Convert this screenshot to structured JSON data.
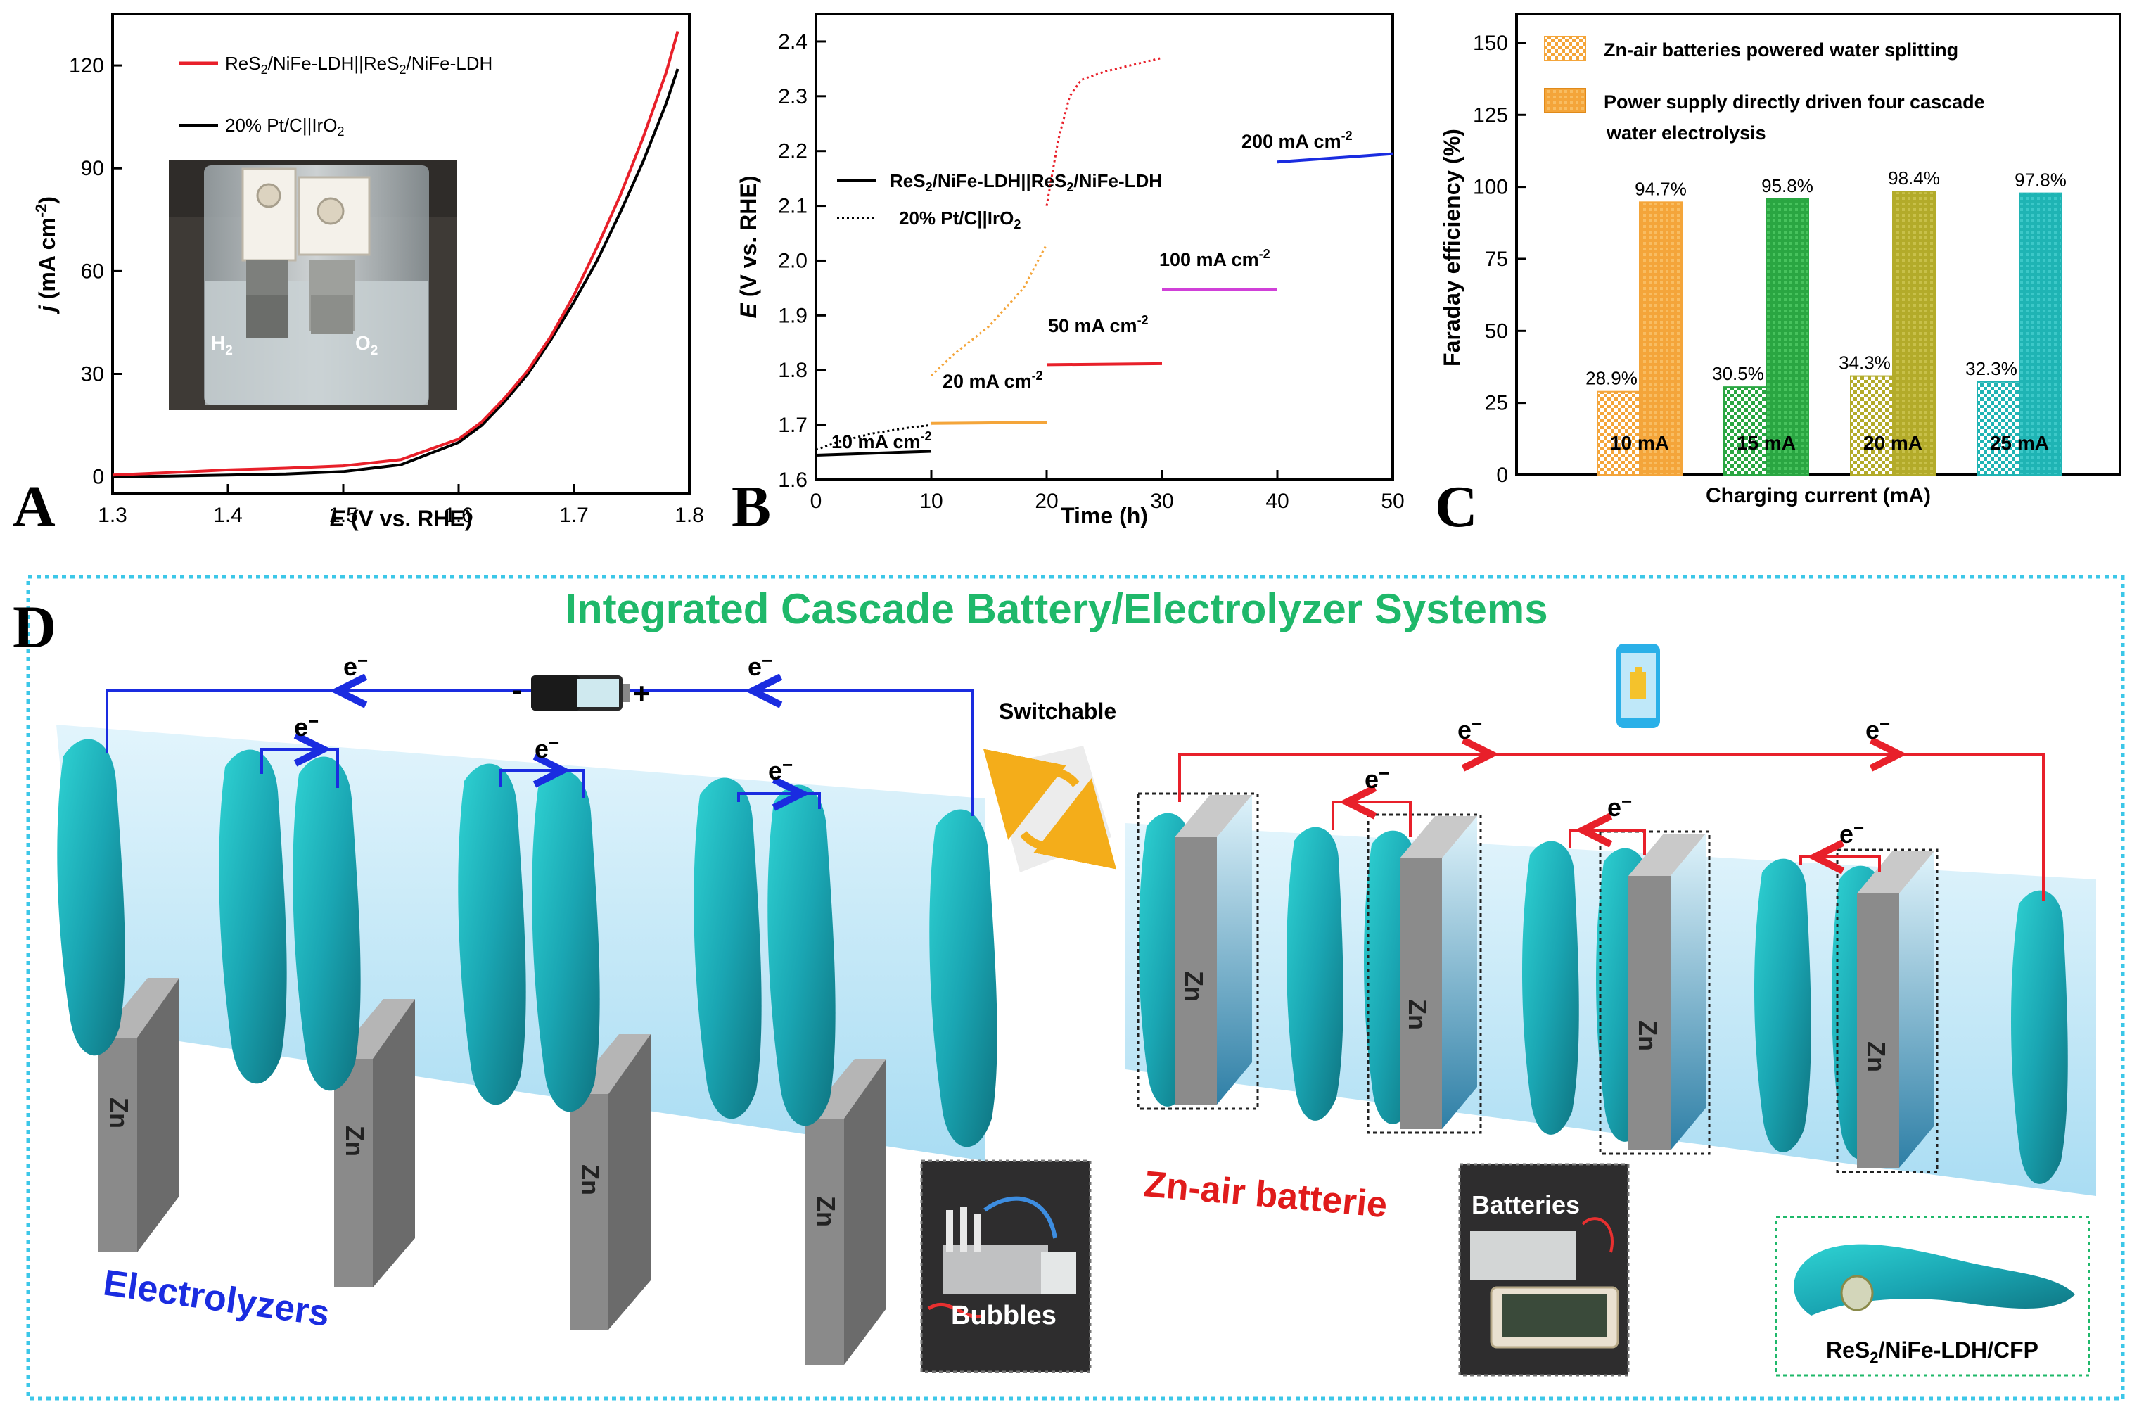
{
  "colors": {
    "red": "#e8202a",
    "blue": "#1a2ce0",
    "orange": "#f4a53a",
    "magenta": "#d040d8",
    "teal": "#1fb4b4",
    "green": "#2aa642",
    "olive": "#b3ab2a",
    "cyan_border": "#3cc7e8",
    "title_green": "#1fb86a",
    "text_red": "#e01b1b"
  },
  "panel_a": {
    "letter": "A",
    "xlabel": "E (V vs. RHE)",
    "xlabel_italic": "E",
    "xlabel_rest": " (V vs. RHE)",
    "ylabel_italic": "j",
    "ylabel_rest": " (mA cm",
    "ylabel_sup": "-2",
    "ylabel_end": ")",
    "xticks": [
      "1.3",
      "1.4",
      "1.5",
      "1.6",
      "1.7",
      "1.8"
    ],
    "yticks": [
      "0",
      "30",
      "60",
      "90",
      "120"
    ],
    "legend_red": "ReS2/NiFe-LDH||ReS2/NiFe-LDH",
    "legend_black": "20% Pt/C||IrO2",
    "photo_label_h2": "H2",
    "photo_label_o2": "O2"
  },
  "panel_b": {
    "letter": "B",
    "xlabel": "Time (h)",
    "ylabel_italic": "E",
    "ylabel_rest": " (V vs. RHE)",
    "xticks": [
      "0",
      "10",
      "20",
      "30",
      "40",
      "50"
    ],
    "yticks": [
      "1.6",
      "1.7",
      "1.8",
      "1.9",
      "2.0",
      "2.1",
      "2.2",
      "2.3",
      "2.4"
    ],
    "legend_solid": "ReS2/NiFe-LDH||ReS2/NiFe-LDH",
    "legend_dotted": "20% Pt/C||IrO2",
    "label_10": "10 mA cm-2",
    "label_20": "20 mA cm-2",
    "label_50": "50 mA cm-2",
    "label_100": "100 mA cm-2",
    "label_200": "200 mA cm-2"
  },
  "panel_c": {
    "letter": "C",
    "xlabel": "Charging current (mA)",
    "ylabel": "Faraday efficiency (%)",
    "yticks": [
      "0",
      "25",
      "50",
      "75",
      "100",
      "125",
      "150"
    ],
    "legend_1": "Zn-air batteries powered water splitting",
    "legend_2a": "Power supply directly driven four cascade",
    "legend_2b": "water electrolysis"
  },
  "chart_data": [
    {
      "type": "line",
      "title": "",
      "xlabel": "E (V vs. RHE)",
      "ylabel": "j (mA cm-2)",
      "xlim": [
        1.3,
        1.8
      ],
      "ylim": [
        -5,
        135
      ],
      "series": [
        {
          "name": "ReS2/NiFe-LDH||ReS2/NiFe-LDH",
          "x": [
            1.3,
            1.35,
            1.4,
            1.45,
            1.5,
            1.55,
            1.6,
            1.62,
            1.64,
            1.66,
            1.68,
            1.7,
            1.72,
            1.74,
            1.76,
            1.78,
            1.79
          ],
          "values": [
            0.5,
            1.2,
            2.0,
            2.5,
            3.2,
            5.0,
            11,
            16,
            23,
            31,
            41,
            53,
            67,
            82,
            99,
            118,
            130
          ]
        },
        {
          "name": "20% Pt/C||IrO2",
          "x": [
            1.3,
            1.35,
            1.4,
            1.45,
            1.5,
            1.55,
            1.6,
            1.62,
            1.64,
            1.66,
            1.68,
            1.7,
            1.72,
            1.74,
            1.76,
            1.78,
            1.79
          ],
          "values": [
            0,
            0.2,
            0.5,
            0.8,
            1.5,
            3.5,
            10,
            15,
            22,
            30,
            40,
            51,
            63,
            77,
            92,
            109,
            119
          ]
        }
      ]
    },
    {
      "type": "line",
      "title": "",
      "xlabel": "Time (h)",
      "ylabel": "E (V vs. RHE)",
      "xlim": [
        0,
        50
      ],
      "ylim": [
        1.6,
        2.45
      ],
      "series": [
        {
          "name": "ReS2/NiFe-LDH 10 mA cm-2",
          "x": [
            0,
            10
          ],
          "values": [
            1.645,
            1.652
          ]
        },
        {
          "name": "ReS2/NiFe-LDH 20 mA cm-2",
          "x": [
            10,
            20
          ],
          "values": [
            1.703,
            1.705
          ]
        },
        {
          "name": "ReS2/NiFe-LDH 50 mA cm-2",
          "x": [
            20,
            30
          ],
          "values": [
            1.81,
            1.812
          ]
        },
        {
          "name": "ReS2/NiFe-LDH 100 mA cm-2",
          "x": [
            30,
            40
          ],
          "values": [
            1.948,
            1.948
          ]
        },
        {
          "name": "ReS2/NiFe-LDH 200 mA cm-2",
          "x": [
            40,
            50
          ],
          "values": [
            2.18,
            2.195
          ]
        },
        {
          "name": "20% Pt/C||IrO2 10 mA cm-2",
          "x": [
            0,
            2,
            5,
            8,
            10
          ],
          "values": [
            1.655,
            1.67,
            1.685,
            1.695,
            1.7
          ]
        },
        {
          "name": "20% Pt/C||IrO2 20 mA cm-2",
          "x": [
            10,
            12,
            15,
            18,
            20
          ],
          "values": [
            1.79,
            1.83,
            1.88,
            1.95,
            2.03
          ]
        },
        {
          "name": "20% Pt/C||IrO2 50 mA cm-2",
          "x": [
            20,
            21,
            22,
            23,
            25,
            27,
            30
          ],
          "values": [
            2.1,
            2.22,
            2.3,
            2.33,
            2.345,
            2.355,
            2.37
          ]
        }
      ]
    },
    {
      "type": "bar",
      "title": "",
      "xlabel": "Charging current (mA)",
      "ylabel": "Faraday efficiency (%)",
      "categories": [
        "10 mA",
        "15 mA",
        "20 mA",
        "25 mA"
      ],
      "ylim": [
        0,
        160
      ],
      "series": [
        {
          "name": "Zn-air batteries powered water splitting",
          "values": [
            28.9,
            30.5,
            34.3,
            32.3
          ],
          "labels": [
            "28.9%",
            "30.5%",
            "34.3%",
            "32.3%"
          ]
        },
        {
          "name": "Power supply directly driven four cascade water electrolysis",
          "values": [
            94.7,
            95.8,
            98.4,
            97.8
          ],
          "labels": [
            "94.7%",
            "95.8%",
            "98.4%",
            "97.8%"
          ]
        }
      ],
      "bar_colors": [
        "#f4a53a",
        "#2aa642",
        "#b3ab2a",
        "#1fb4b4"
      ]
    }
  ],
  "panel_d": {
    "letter": "D",
    "title": "Integrated Cascade Battery/Electrolyzer Systems",
    "electron": "e-",
    "switchable": "Switchable",
    "electrolyzers": "Electrolyzers",
    "zn_air": "Zn-air batterie",
    "zn": "Zn",
    "bubbles": "Bubbles",
    "batteries": "Batteries",
    "cfp": "ReS2/NiFe-LDH/CFP",
    "battery_minus": "-",
    "battery_plus": "+"
  }
}
